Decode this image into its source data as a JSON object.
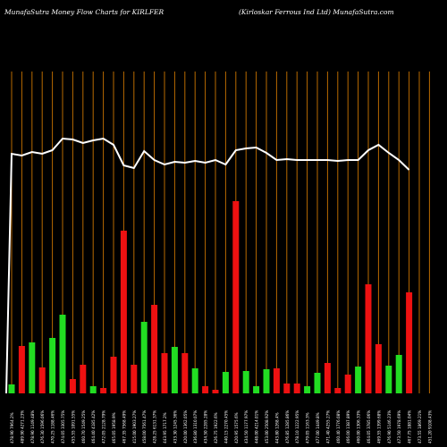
{
  "header": {
    "left": "MunafaSutra  Money Flow  Charts for KIRLFER",
    "right": "(Kirloskar Ferrous Ind Ltd) MunafaSutra.com"
  },
  "chart_data": {
    "type": "bar",
    "title": "MunafaSutra Money Flow Charts for KIRLFER",
    "xlabel": "",
    "ylabel": "",
    "grid": "vertical orange gridlines",
    "colors": {
      "up": "#22dd22",
      "down": "#ee1111",
      "line": "#ffffff",
      "grid": "#b86a00",
      "background": "#000000"
    },
    "categories": [
      "478.90 7964.2%",
      "489.90 4271.23%",
      "478.90 1149.48%",
      "476.30 1596.06%",
      "470.25 1188.46%",
      "474.05 3305.75%",
      "455.55 1091.55%",
      "460.70 1549.25%",
      "464.40 4185.42%",
      "472.05 2128.79%",
      "465.05 1958.9%",
      "467.35 7568.49%",
      "415.00 1903.27%",
      "458.00 7561.47%",
      "428.25 6131.37%",
      "443.95 1717.2%",
      "433.30 1245.36%",
      "420.00 1362.05%",
      "436.80 1310.07%",
      "434.50 2285.28%",
      "426.75 1922.6%",
      "440.15 2270.45%",
      "420.95 1575.6%",
      "434.50 1177.97%",
      "448.00 4214.01%",
      "453.00 2508.92%",
      "443.80 1268.4%",
      "476.85 1285.86%",
      "478.10 1222.95%",
      "479.05 1163.3%",
      "477.00 1449.8%",
      "471.40 4255.27%",
      "460.40 1776.08%",
      "466.00 1387.89%",
      "460.00 1306.33%",
      "464.05 3785.06%",
      "469.55 1399.68%",
      "476.90 5146.23%",
      "473.50 1978.69%",
      "467.75 1881.04%",
      "473.55 1869.21%",
      "451.20 9108.43%"
    ],
    "directions": [
      "up",
      "down",
      "up",
      "down",
      "up",
      "up",
      "down",
      "down",
      "up",
      "down",
      "down",
      "down",
      "down",
      "up",
      "down",
      "down",
      "up",
      "down",
      "up",
      "down",
      "down",
      "up",
      "down",
      "up",
      "up",
      "up",
      "down",
      "down",
      "down",
      "up",
      "up",
      "down",
      "down",
      "down",
      "up",
      "down",
      "down",
      "up",
      "up",
      "down",
      "down",
      "down"
    ],
    "values": [
      10,
      53,
      57,
      29,
      62,
      88,
      16,
      32,
      8,
      6,
      41,
      182,
      32,
      80,
      99,
      45,
      52,
      45,
      28,
      8,
      4,
      24,
      215,
      25,
      8,
      27,
      28,
      11,
      11,
      8,
      23,
      34,
      6,
      21,
      30,
      122,
      55,
      31,
      43,
      113,
      0,
      0
    ],
    "line": [
      268,
      266,
      270,
      268,
      272,
      285,
      284,
      280,
      283,
      285,
      278,
      255,
      252,
      271,
      261,
      256,
      259,
      258,
      260,
      258,
      261,
      256,
      272,
      274,
      275,
      269,
      261,
      262,
      261,
      261,
      261,
      261,
      260,
      261,
      261,
      272,
      278,
      269,
      261,
      250,
      0,
      0
    ],
    "ylim": [
      0,
      300
    ]
  }
}
